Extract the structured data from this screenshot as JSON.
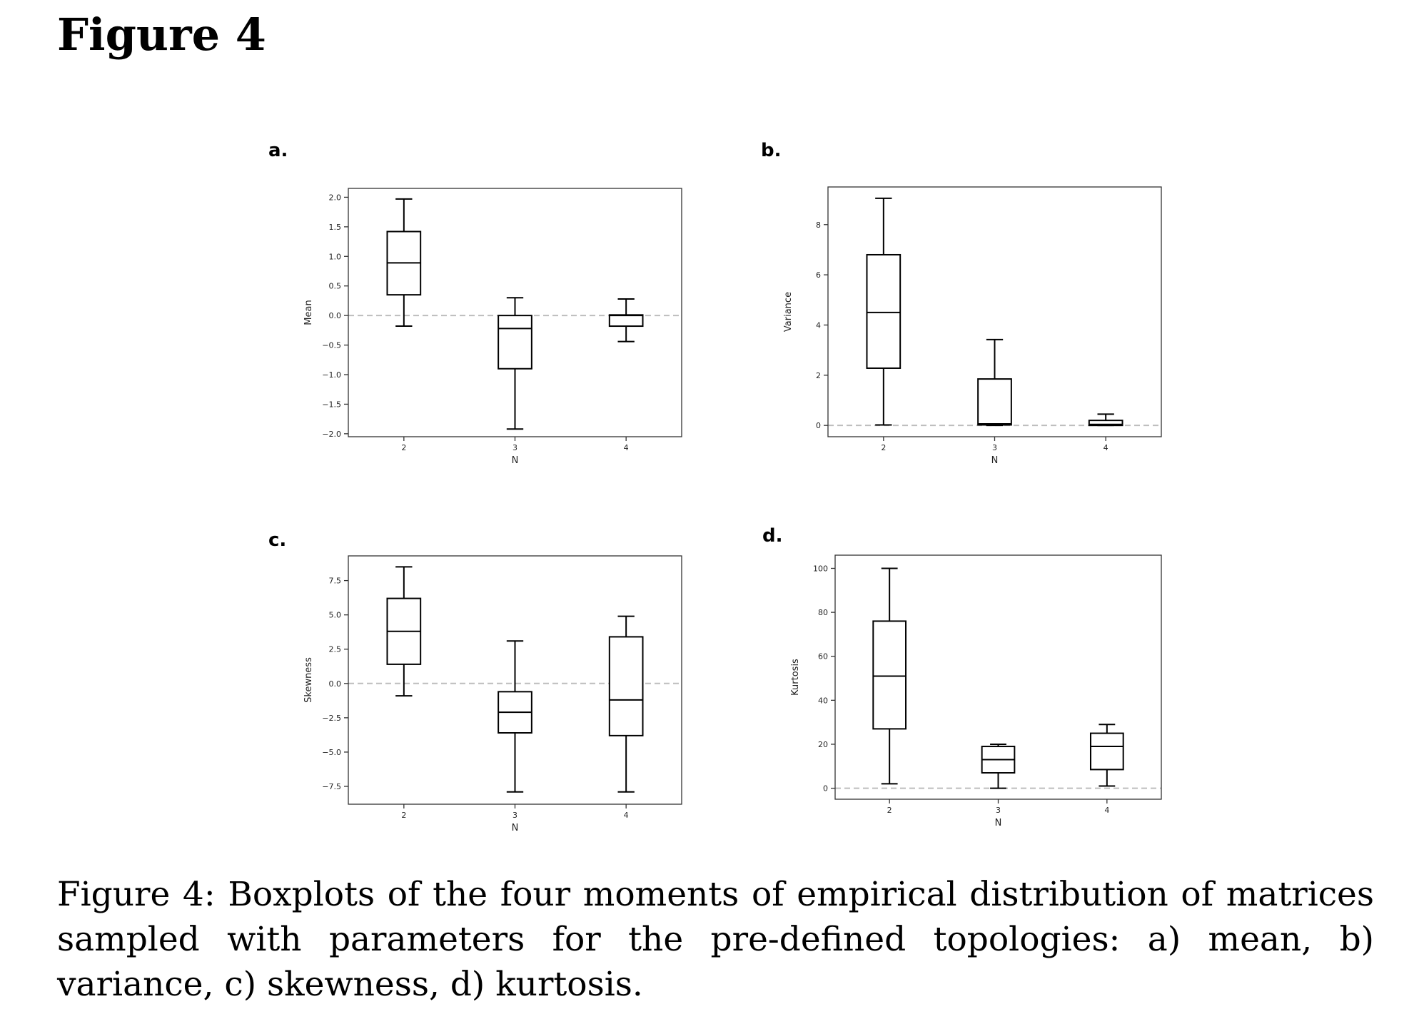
{
  "figure_title": "Figure 4",
  "caption": "Figure 4: Boxplots of the four moments of empirical distribution of matrices sampled with parameters for the pre-defined topologies: a) mean, b) variance, c) skewness, d) kurtosis.",
  "chart_data": [
    {
      "panel": "a.",
      "type": "box",
      "xlabel": "N",
      "ylabel": "Mean",
      "categories": [
        "2",
        "3",
        "4"
      ],
      "ylim": [
        -2.05,
        2.15
      ],
      "yticks": [
        2.0,
        1.5,
        1.0,
        0.5,
        0.0,
        -0.5,
        -1.0,
        -1.5,
        -2.0
      ],
      "ytick_labels": [
        "2.0",
        "1.5",
        "1.0",
        "0.5",
        "0.0",
        "−0.5",
        "−1.0",
        "−1.5",
        "−2.0"
      ],
      "reference_line": 0,
      "boxes": [
        {
          "min": -0.18,
          "q1": 0.35,
          "median": 0.89,
          "q3": 1.42,
          "max": 1.97
        },
        {
          "min": -1.92,
          "q1": -0.9,
          "median": -0.22,
          "q3": 0.0,
          "max": 0.3
        },
        {
          "min": -0.44,
          "q1": -0.18,
          "median": 0.0,
          "q3": 0.01,
          "max": 0.28
        }
      ]
    },
    {
      "panel": "b.",
      "type": "box",
      "xlabel": "N",
      "ylabel": "Variance",
      "categories": [
        "2",
        "3",
        "4"
      ],
      "ylim": [
        -0.45,
        9.5
      ],
      "yticks": [
        0,
        2,
        4,
        6,
        8
      ],
      "ytick_labels": [
        "0",
        "2",
        "4",
        "6",
        "8"
      ],
      "reference_line": 0,
      "boxes": [
        {
          "min": 0.02,
          "q1": 2.28,
          "median": 4.5,
          "q3": 6.8,
          "max": 9.05
        },
        {
          "min": 0.0,
          "q1": 0.02,
          "median": 0.06,
          "q3": 1.85,
          "max": 3.42
        },
        {
          "min": 0.0,
          "q1": 0.0,
          "median": 0.04,
          "q3": 0.2,
          "max": 0.45
        }
      ]
    },
    {
      "panel": "c.",
      "type": "box",
      "xlabel": "N",
      "ylabel": "Skewness",
      "categories": [
        "2",
        "3",
        "4"
      ],
      "ylim": [
        -8.8,
        9.3
      ],
      "yticks": [
        7.5,
        5.0,
        2.5,
        0.0,
        -2.5,
        -5.0,
        -7.5
      ],
      "ytick_labels": [
        "7.5",
        "5.0",
        "2.5",
        "0.0",
        "−2.5",
        "−5.0",
        "−7.5"
      ],
      "reference_line": 0,
      "boxes": [
        {
          "min": -0.9,
          "q1": 1.4,
          "median": 3.8,
          "q3": 6.2,
          "max": 8.5
        },
        {
          "min": -7.9,
          "q1": -3.6,
          "median": -2.1,
          "q3": -0.6,
          "max": 3.1
        },
        {
          "min": -7.9,
          "q1": -3.8,
          "median": -1.2,
          "q3": 3.4,
          "max": 4.9
        }
      ]
    },
    {
      "panel": "d.",
      "type": "box",
      "xlabel": "N",
      "ylabel": "Kurtosis",
      "categories": [
        "2",
        "3",
        "4"
      ],
      "ylim": [
        -5,
        106
      ],
      "yticks": [
        0,
        20,
        40,
        60,
        80,
        100
      ],
      "ytick_labels": [
        "0",
        "20",
        "40",
        "60",
        "80",
        "100"
      ],
      "reference_line": 0,
      "boxes": [
        {
          "min": 2,
          "q1": 27,
          "median": 51,
          "q3": 76,
          "max": 100
        },
        {
          "min": 0,
          "q1": 7,
          "median": 13,
          "q3": 19,
          "max": 20
        },
        {
          "min": 1,
          "q1": 8.5,
          "median": 19,
          "q3": 25,
          "max": 29
        }
      ]
    }
  ]
}
